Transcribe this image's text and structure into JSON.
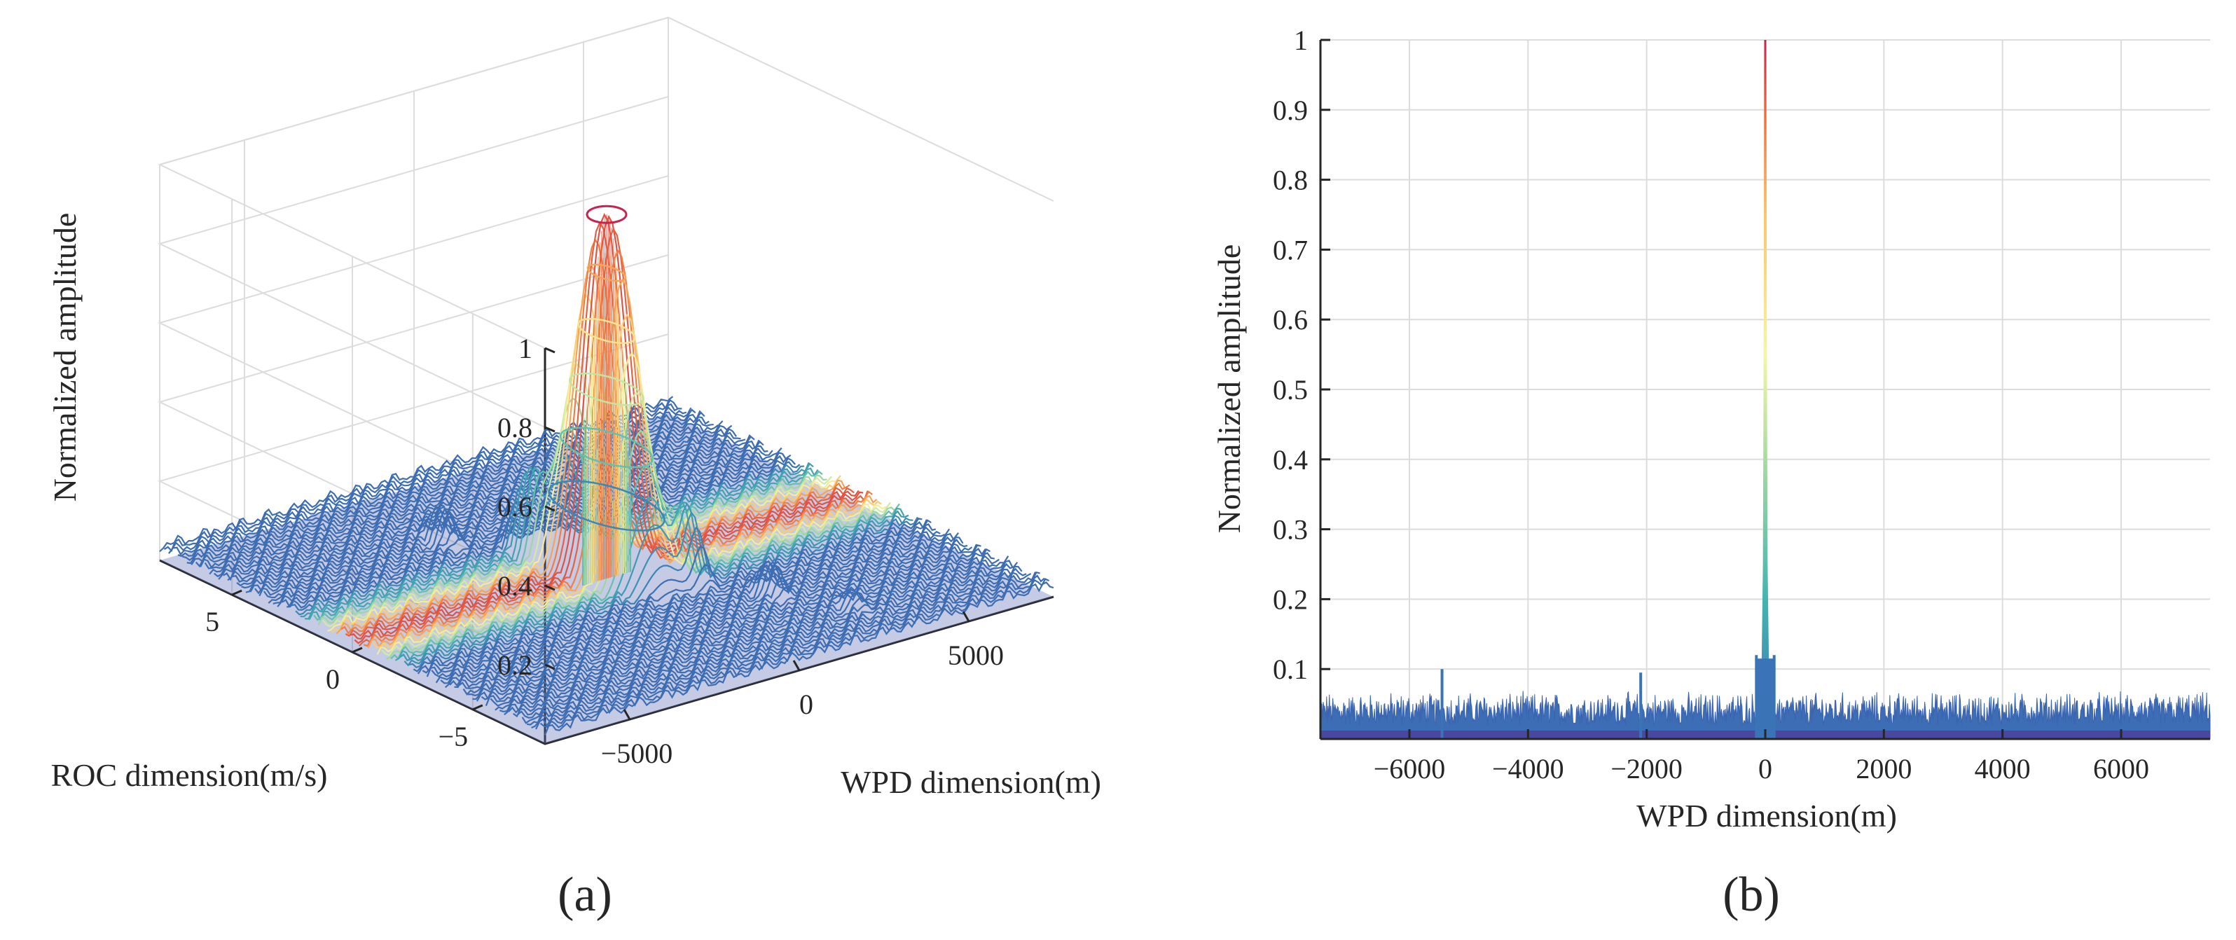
{
  "colors": {
    "axis": "#262626",
    "grid": "#dcdcdc",
    "colormap": [
      "#4a47a0",
      "#3b74b6",
      "#45b4b0",
      "#a8dba0",
      "#f4f6a6",
      "#fbc56a",
      "#f0743f",
      "#c6254d"
    ]
  },
  "chart_data": [
    {
      "panel": "a",
      "type": "surface",
      "caption": "(a)",
      "zlabel": "Normalized amplitude",
      "xlabel": "WPD dimension(m)",
      "ylabel": "ROC dimension(m/s)",
      "z_ticks": [
        "0.2",
        "0.4",
        "0.6",
        "0.8",
        "1"
      ],
      "z_tick_values": [
        0.2,
        0.4,
        0.6,
        0.8,
        1
      ],
      "x_ticks": [
        "−5000",
        "0",
        "5000"
      ],
      "x_tick_values": [
        -5000,
        0,
        5000
      ],
      "y_ticks": [
        "5",
        "0",
        "−5"
      ],
      "y_tick_values": [
        5,
        0,
        -5
      ],
      "xlim": [
        -7500,
        7500
      ],
      "ylim": [
        -8,
        8
      ],
      "zlim": [
        0,
        1
      ],
      "peak": {
        "x": 0,
        "y": 0,
        "z": 0.92
      },
      "sidelobes": [
        {
          "x": -2000,
          "y": 4,
          "z": 0.12
        },
        {
          "x": -900,
          "y": 2,
          "z": 0.2
        },
        {
          "x": 1000,
          "y": -2,
          "z": 0.19
        },
        {
          "x": 2000,
          "y": -4,
          "z": 0.11
        },
        {
          "x": 3000,
          "y": -6,
          "z": 0.07
        }
      ],
      "floor_level": 0.05
    },
    {
      "panel": "b",
      "type": "line",
      "caption": "(b)",
      "xlabel": "WPD dimension(m)",
      "ylabel": "Normalized amplitude",
      "xlim": [
        -7500,
        7500
      ],
      "ylim": [
        0,
        1
      ],
      "x_ticks": [
        "−6000",
        "−4000",
        "−2000",
        "0",
        "2000",
        "4000",
        "6000"
      ],
      "x_tick_values": [
        -6000,
        -4000,
        -2000,
        0,
        2000,
        4000,
        6000
      ],
      "y_ticks": [
        "0.1",
        "0.2",
        "0.3",
        "0.4",
        "0.5",
        "0.6",
        "0.7",
        "0.8",
        "0.9",
        "1"
      ],
      "y_tick_values": [
        0.1,
        0.2,
        0.3,
        0.4,
        0.5,
        0.6,
        0.7,
        0.8,
        0.9,
        1
      ],
      "grid": true,
      "peak": {
        "x": 0,
        "y": 1.0
      },
      "noise_floor": [
        0.02,
        0.07
      ],
      "spikes": [
        {
          "x": -5450,
          "y": 0.1
        },
        {
          "x": -2100,
          "y": 0.095
        },
        {
          "x": -150,
          "y": 0.12
        },
        {
          "x": 150,
          "y": 0.12
        }
      ]
    }
  ]
}
